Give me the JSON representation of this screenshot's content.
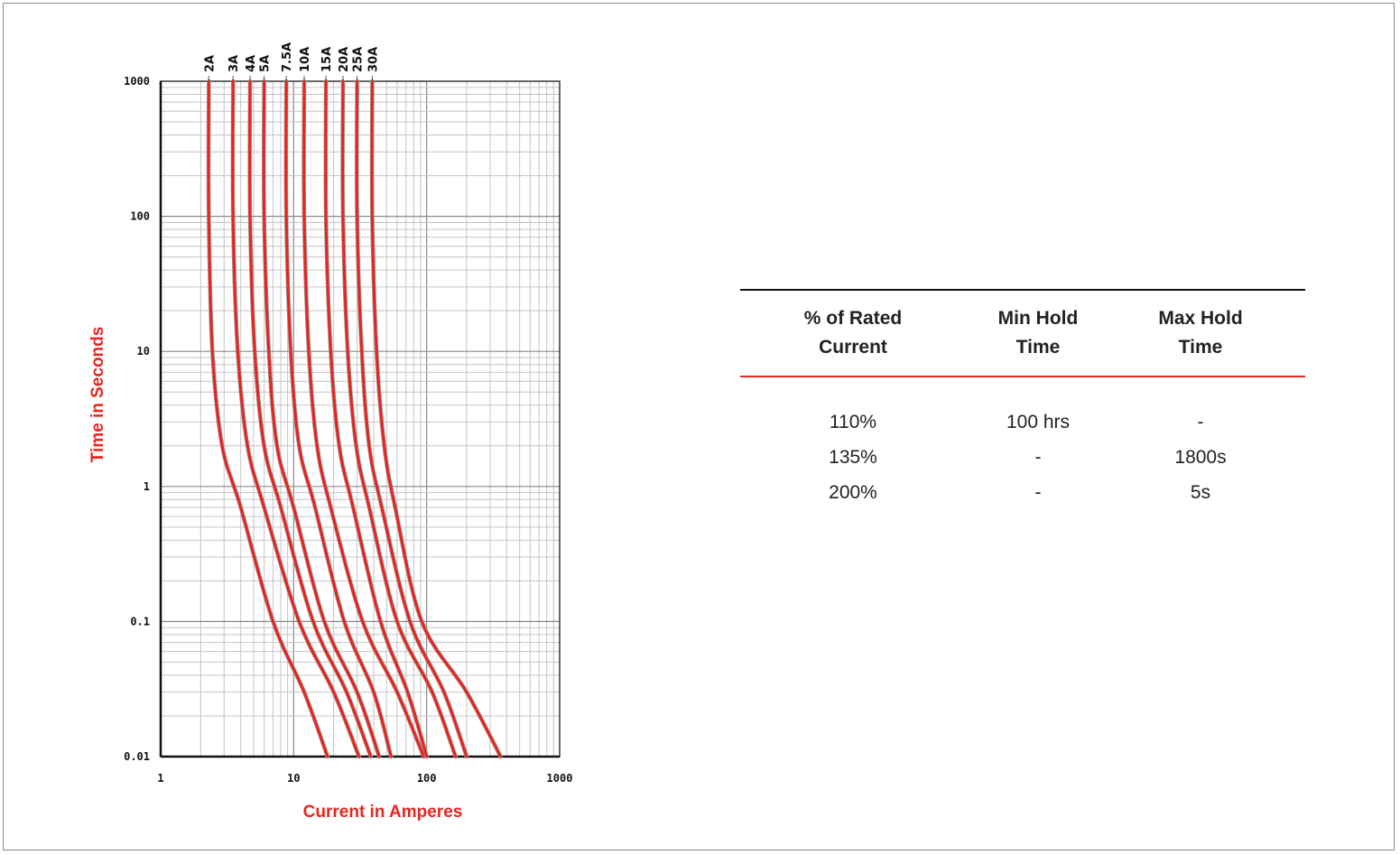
{
  "chart_data": {
    "type": "line",
    "xlabel": "Current in Amperes",
    "ylabel": "Time in Seconds",
    "xscale": "log",
    "yscale": "log",
    "xlim": [
      1,
      1000
    ],
    "ylim": [
      0.01,
      1000
    ],
    "x_ticks": [
      "1",
      "10",
      "100",
      "1000"
    ],
    "y_ticks": [
      "0.01",
      "0.1",
      "1",
      "10",
      "100",
      "1000"
    ],
    "grid": true,
    "line_color": "#e8251f",
    "series": [
      {
        "name": "2A",
        "x": [
          2.3,
          2.3,
          2.45,
          2.9,
          4.0,
          7.0,
          12.0,
          18.0
        ],
        "y": [
          1000,
          100,
          10,
          2,
          0.7,
          0.1,
          0.03,
          0.01
        ]
      },
      {
        "name": "3A",
        "x": [
          3.5,
          3.5,
          3.8,
          4.5,
          6.0,
          11.0,
          20.0,
          31.0
        ],
        "y": [
          1000,
          100,
          10,
          2,
          0.7,
          0.1,
          0.03,
          0.01
        ]
      },
      {
        "name": "4A",
        "x": [
          4.7,
          4.7,
          5.1,
          6.0,
          8.0,
          14.0,
          25.0,
          38.0
        ],
        "y": [
          1000,
          100,
          10,
          2,
          0.7,
          0.1,
          0.03,
          0.01
        ]
      },
      {
        "name": "5A",
        "x": [
          6.0,
          6.0,
          6.5,
          7.5,
          10.0,
          17.0,
          30.0,
          44.0
        ],
        "y": [
          1000,
          100,
          10,
          2,
          0.7,
          0.1,
          0.03,
          0.01
        ]
      },
      {
        "name": "7.5A",
        "x": [
          8.8,
          8.8,
          9.5,
          11.0,
          14.5,
          24.0,
          40.0,
          54.0
        ],
        "y": [
          1000,
          100,
          10,
          2,
          0.7,
          0.1,
          0.03,
          0.01
        ]
      },
      {
        "name": "10A",
        "x": [
          12.0,
          12.0,
          13.0,
          15.0,
          19.0,
          33.0,
          60.0,
          95.0
        ],
        "y": [
          1000,
          100,
          10,
          2,
          0.7,
          0.1,
          0.03,
          0.01
        ]
      },
      {
        "name": "15A",
        "x": [
          17.5,
          17.5,
          19.0,
          22.0,
          28.0,
          45.0,
          72.0,
          100.0
        ],
        "y": [
          1000,
          100,
          10,
          2,
          0.7,
          0.1,
          0.03,
          0.01
        ]
      },
      {
        "name": "20A",
        "x": [
          23.5,
          23.5,
          25.5,
          29.5,
          37.0,
          60.0,
          110.0,
          165.0
        ],
        "y": [
          1000,
          100,
          10,
          2,
          0.7,
          0.1,
          0.03,
          0.01
        ]
      },
      {
        "name": "25A",
        "x": [
          30.0,
          30.0,
          32.5,
          37.0,
          46.0,
          75.0,
          135.0,
          200.0
        ],
        "y": [
          1000,
          100,
          10,
          2,
          0.7,
          0.1,
          0.03,
          0.01
        ]
      },
      {
        "name": "30A",
        "x": [
          39.0,
          39.0,
          42.0,
          48.0,
          58.0,
          92.0,
          200.0,
          360.0
        ],
        "y": [
          1000,
          100,
          10,
          2,
          0.7,
          0.1,
          0.03,
          0.01
        ]
      }
    ]
  },
  "table": {
    "headers": [
      [
        "% of Rated",
        "Current"
      ],
      [
        "Min Hold",
        "Time"
      ],
      [
        "Max Hold",
        "Time"
      ]
    ],
    "rows": [
      [
        "110%",
        "100 hrs",
        "-"
      ],
      [
        "135%",
        "-",
        "1800s"
      ],
      [
        "200%",
        "-",
        "5s"
      ]
    ],
    "rule_color": "#e8251f"
  }
}
